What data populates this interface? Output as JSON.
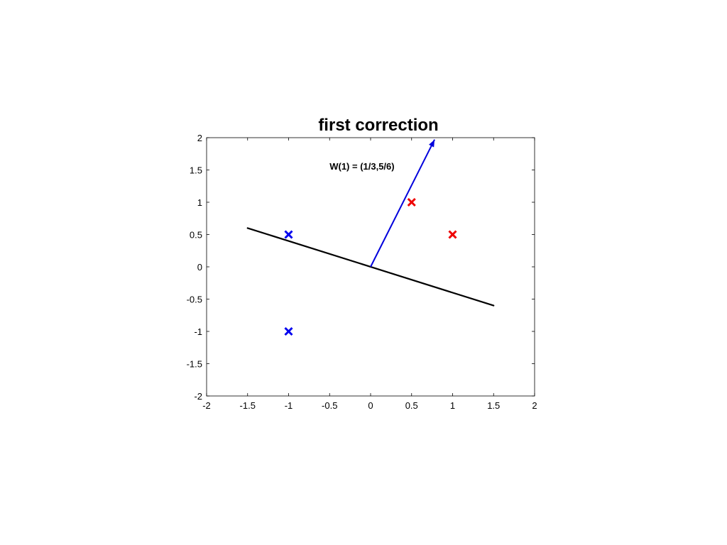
{
  "chart_data": {
    "type": "scatter",
    "title": "first correction",
    "xlabel": "",
    "ylabel": "",
    "xlim": [
      -2,
      2
    ],
    "ylim": [
      -2,
      2
    ],
    "xticks": [
      "-2",
      "-1.5",
      "-1",
      "-0.5",
      "0",
      "0.5",
      "1",
      "1.5",
      "2"
    ],
    "yticks": [
      "-2",
      "-1.5",
      "-1",
      "-0.5",
      "0",
      "0.5",
      "1",
      "1.5",
      "2"
    ],
    "grid": false,
    "series": [
      {
        "marker": "x",
        "color": "#0000ee",
        "points": [
          [
            -1,
            0.5
          ],
          [
            -1,
            -1
          ]
        ]
      },
      {
        "marker": "x",
        "color": "#ee0000",
        "points": [
          [
            0.5,
            1
          ],
          [
            1,
            0.5
          ]
        ]
      }
    ],
    "decision_line": {
      "color": "#000000",
      "x": [
        -1.5,
        1.5
      ],
      "y": [
        0.6,
        -0.6
      ]
    },
    "weight_vector": {
      "color": "#0000dd",
      "from": [
        0,
        0
      ],
      "to": [
        0.78,
        1.97
      ]
    },
    "annotation": {
      "text": "W(1) = (1/3,5/6)",
      "x": -0.05,
      "y": 1.55
    }
  }
}
